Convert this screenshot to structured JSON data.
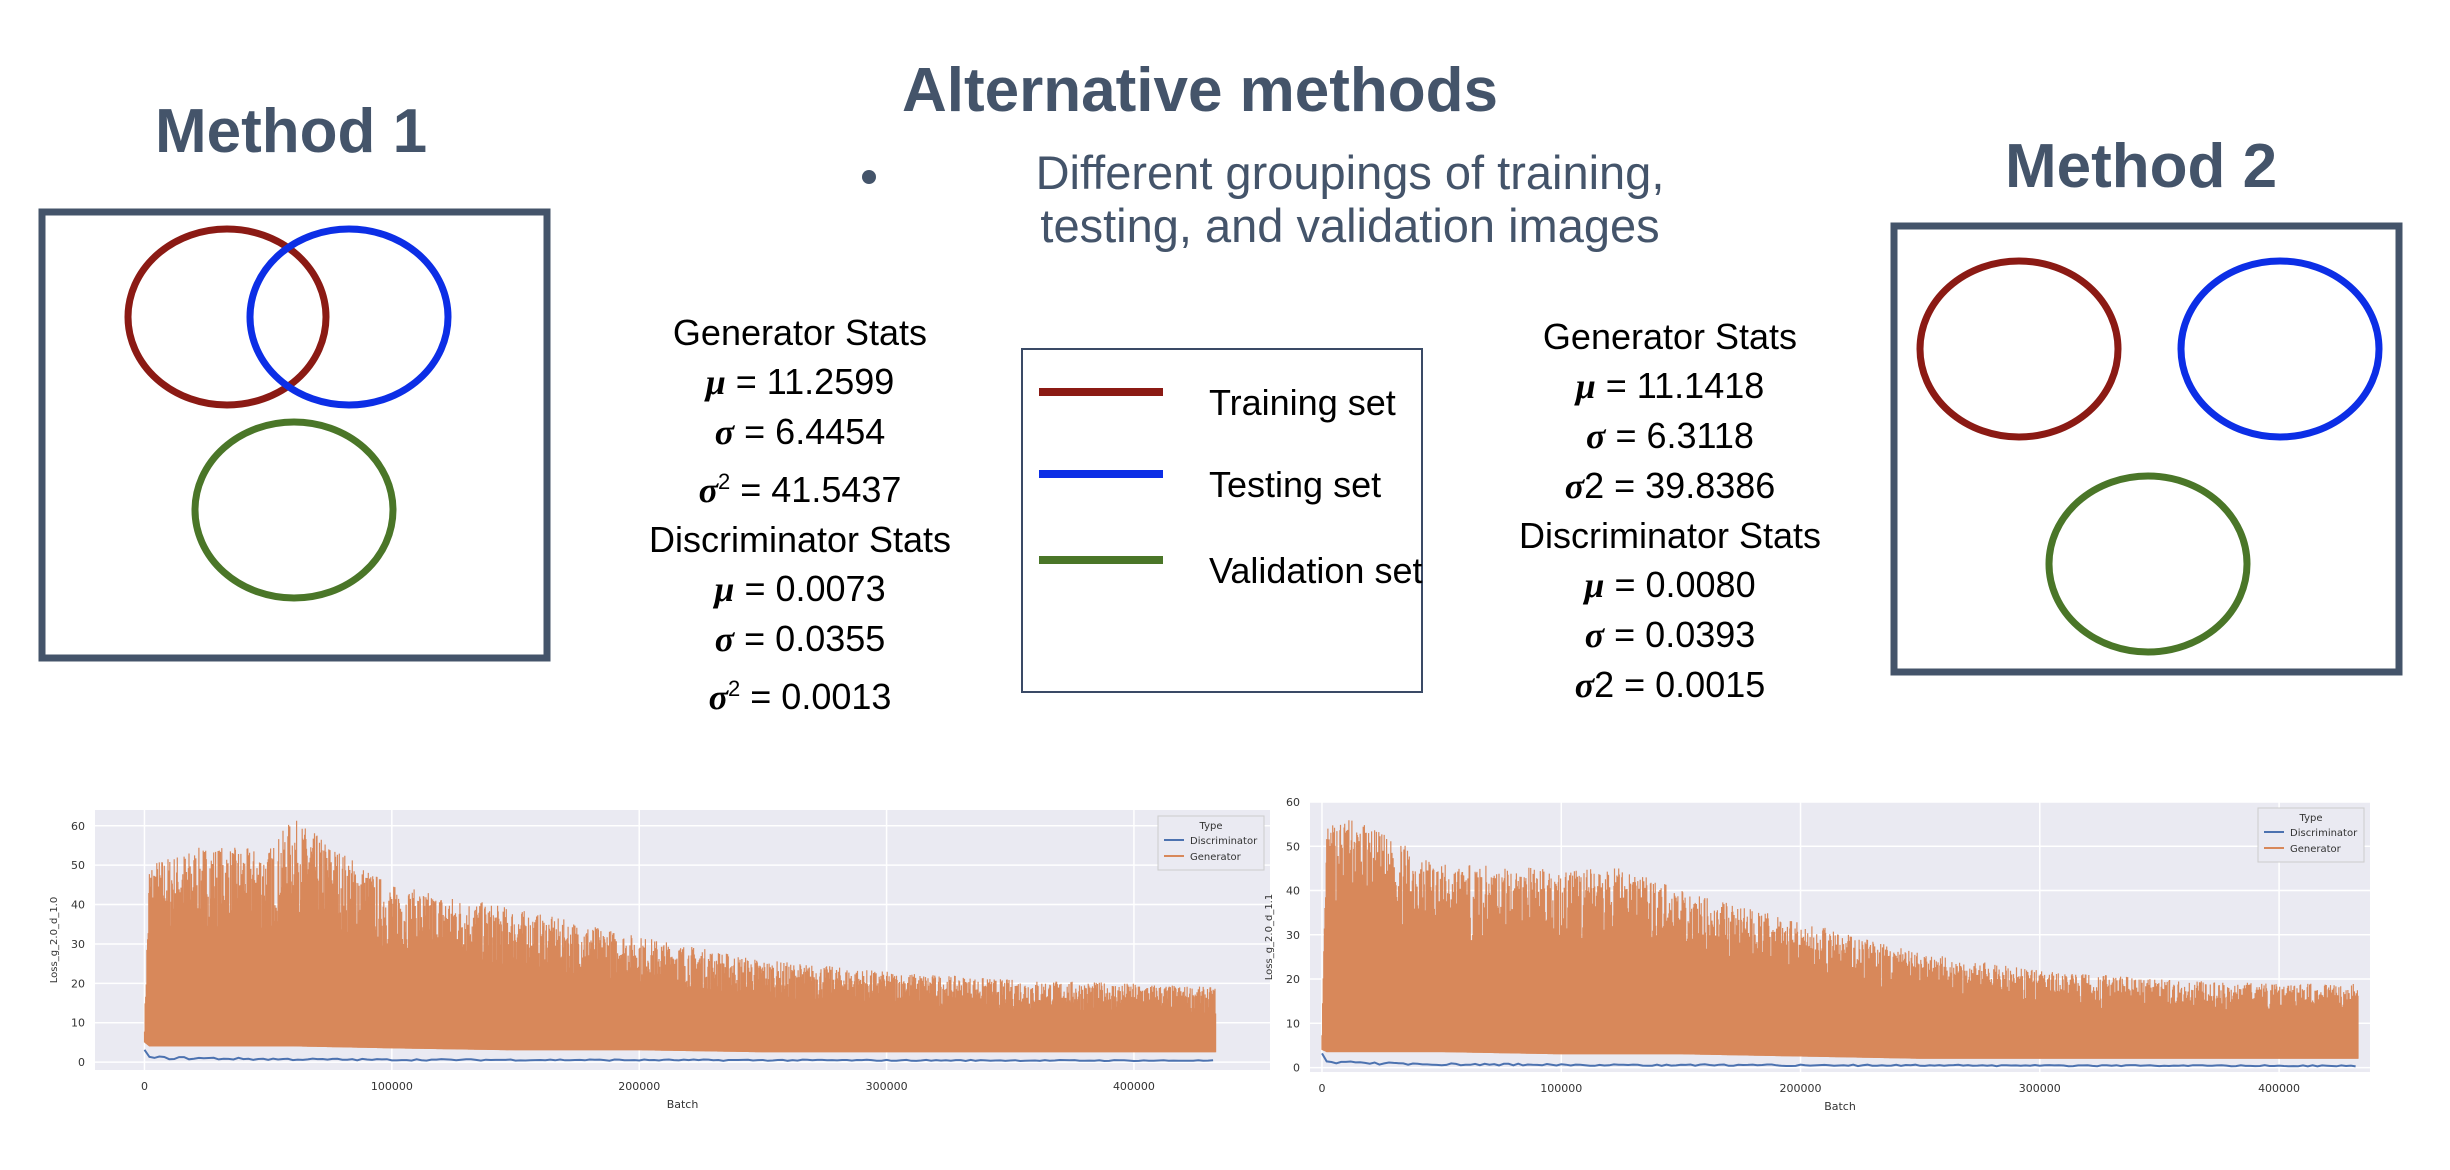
{
  "title": "Alternative methods",
  "bullet": {
    "line1": "Different groupings of training,",
    "line2": "testing, and validation images"
  },
  "method1": {
    "label": "Method 1",
    "generator_header": "Generator Stats",
    "gen_mu": "= 11.2599",
    "gen_sigma": "= 6.4454",
    "gen_var": "= 41.5437",
    "discriminator_header": "Discriminator Stats",
    "disc_mu": "= 0.0073",
    "disc_sigma": "= 0.0355",
    "disc_var": "= 0.0013",
    "var_symbol": "2"
  },
  "method2": {
    "label": "Method 2",
    "generator_header": "Generator Stats",
    "gen_mu": "= 11.1418",
    "gen_sigma": "= 6.3118",
    "gen_var": "2 = 39.8386",
    "discriminator_header": "Discriminator Stats",
    "disc_mu": "= 0.0080",
    "disc_sigma": "= 0.0393",
    "disc_var": "2 = 0.0015"
  },
  "symbols": {
    "mu": "μ",
    "sigma": "σ"
  },
  "legend": {
    "items": [
      {
        "label": "Training set",
        "color": "#8b1a14"
      },
      {
        "label": "Testing set",
        "color": "#0c2ee6"
      },
      {
        "label": "Validation set",
        "color": "#4a7628"
      }
    ]
  },
  "colors": {
    "frame": "#44546a",
    "training": "#8b1a14",
    "testing": "#0c2ee6",
    "validation": "#4a7628",
    "generator": "#d8885a",
    "discriminator": "#4c72b0",
    "plot_bg": "#eaeaf2"
  },
  "chart_data": [
    {
      "type": "line",
      "xlabel": "Batch",
      "ylabel": "Loss_g_2.0_d_1.0",
      "xlim": [
        -20000,
        455000
      ],
      "ylim": [
        -2,
        64
      ],
      "x_ticks": [
        0,
        100000,
        200000,
        300000,
        400000
      ],
      "x_tick_labels": [
        "0",
        "100000",
        "200000",
        "300000",
        "400000"
      ],
      "y_ticks": [
        0,
        10,
        20,
        30,
        40,
        50,
        60
      ],
      "y_tick_labels": [
        "0",
        "10",
        "20",
        "30",
        "40",
        "50",
        "60"
      ],
      "grid": true,
      "legend_title": "Type",
      "legend_position": "top-right",
      "series": [
        {
          "name": "Discriminator",
          "x": [
            0,
            2000,
            50000,
            100000,
            200000,
            300000,
            433000
          ],
          "y_max": [
            3.5,
            1.5,
            1.0,
            0.8,
            0.7,
            0.6,
            0.5
          ],
          "y_min": [
            0,
            0,
            0,
            0,
            0,
            0,
            0
          ]
        },
        {
          "name": "Generator",
          "x": [
            0,
            2000,
            25000,
            50000,
            60000,
            100000,
            150000,
            200000,
            250000,
            300000,
            350000,
            400000,
            433000
          ],
          "y_max": [
            10,
            51,
            55,
            54,
            62,
            45,
            39,
            32,
            26,
            23,
            21,
            20,
            19
          ],
          "y_min": [
            5,
            4,
            4,
            4,
            4,
            3.5,
            3,
            3,
            2.5,
            2.5,
            2.5,
            2.5,
            2.5
          ]
        }
      ]
    },
    {
      "type": "line",
      "xlabel": "Batch",
      "ylabel": "Loss_g_2.0_d_1.1",
      "xlim": [
        -5000,
        438000
      ],
      "ylim": [
        -1,
        60
      ],
      "x_ticks": [
        0,
        100000,
        200000,
        300000,
        400000
      ],
      "x_tick_labels": [
        "0",
        "100000",
        "200000",
        "300000",
        "400000"
      ],
      "y_ticks": [
        0,
        10,
        20,
        30,
        40,
        50,
        60
      ],
      "y_tick_labels": [
        "0",
        "10",
        "20",
        "30",
        "40",
        "50",
        "60"
      ],
      "grid": true,
      "legend_title": "Type",
      "legend_position": "top-right",
      "series": [
        {
          "name": "Discriminator",
          "x": [
            0,
            2000,
            50000,
            100000,
            200000,
            300000,
            433000
          ],
          "y_max": [
            4,
            1.5,
            1.0,
            0.8,
            0.7,
            0.6,
            0.5
          ],
          "y_min": [
            0,
            0,
            0,
            0,
            0,
            0,
            0
          ]
        },
        {
          "name": "Generator",
          "x": [
            0,
            2000,
            10000,
            50000,
            100000,
            130000,
            150000,
            200000,
            250000,
            300000,
            350000,
            400000,
            433000
          ],
          "y_max": [
            10,
            54,
            57,
            46,
            45,
            45,
            40,
            33,
            26,
            22,
            20,
            19,
            19
          ],
          "y_min": [
            4,
            3.5,
            3.5,
            3.5,
            3,
            3,
            3,
            2.5,
            2,
            2,
            2,
            2,
            2
          ]
        }
      ]
    }
  ]
}
